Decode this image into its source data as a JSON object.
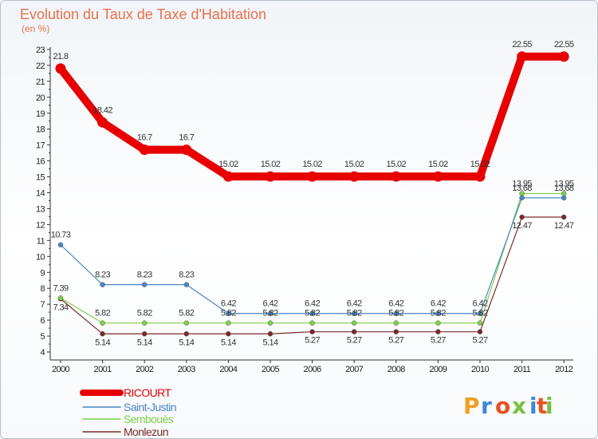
{
  "chart_data": {
    "type": "line",
    "title": "Evolution du Taux de Taxe d'Habitation",
    "subtitle": "(en %)",
    "ylim": [
      4,
      23
    ],
    "yticks": [
      4,
      5,
      6,
      7,
      8,
      9,
      10,
      11,
      12,
      13,
      14,
      15,
      16,
      17,
      18,
      19,
      20,
      21,
      22,
      23
    ],
    "categories": [
      "2000",
      "2001",
      "2002",
      "2003",
      "2004",
      "2005",
      "2006",
      "2007",
      "2008",
      "2009",
      "2010",
      "2011",
      "2012"
    ],
    "series": [
      {
        "name": "RICOURT",
        "color": "#e80000",
        "values": [
          21.8,
          18.42,
          16.7,
          16.7,
          15.02,
          15.02,
          15.02,
          15.02,
          15.02,
          15.02,
          15.02,
          22.55,
          22.55
        ],
        "labels": [
          "21.8",
          "18.42",
          "16.7",
          "16.7",
          "15.02",
          "15.02",
          "15.02",
          "15.02",
          "15.02",
          "15.02",
          "15.02",
          "22.55",
          "22.55"
        ]
      },
      {
        "name": "Saint-Justin",
        "color": "#4a86c6",
        "values": [
          10.73,
          8.23,
          8.23,
          8.23,
          6.42,
          6.42,
          6.42,
          6.42,
          6.42,
          6.42,
          6.42,
          13.68,
          13.68
        ],
        "labels": [
          "10.73",
          "8.23",
          "8.23",
          "8.23",
          "6.42",
          "6.42",
          "6.42",
          "6.42",
          "6.42",
          "6.42",
          "6.42",
          "13.68",
          "13.68"
        ]
      },
      {
        "name": "Sembouès",
        "color": "#7ed04a",
        "values": [
          7.39,
          5.82,
          5.82,
          5.82,
          5.82,
          5.82,
          5.82,
          5.82,
          5.82,
          5.82,
          5.82,
          13.95,
          13.95
        ],
        "labels": [
          "7.39",
          "5.82",
          "5.82",
          "5.82",
          "5.82",
          "5.82",
          "5.82",
          "5.82",
          "5.82",
          "5.82",
          "5.82",
          "13.95",
          "13.95"
        ]
      },
      {
        "name": "Monlezun",
        "color": "#7a2a2a",
        "values": [
          7.34,
          5.14,
          5.14,
          5.14,
          5.14,
          5.14,
          5.27,
          5.27,
          5.27,
          5.27,
          5.27,
          12.47,
          12.47
        ],
        "labels": [
          "7.34",
          "5.14",
          "5.14",
          "5.14",
          "5.14",
          "5.14",
          "5.27",
          "5.27",
          "5.27",
          "5.27",
          "5.27",
          "12.47",
          "12.47"
        ]
      }
    ],
    "legend_position": "bottom-left",
    "grid": false
  },
  "logo": {
    "letters": [
      "P",
      "r",
      "o",
      "x",
      "i",
      "t",
      "i"
    ],
    "colors": [
      "#f0a020",
      "#3a88d8",
      "#e85020",
      "#78c040",
      "#3a88d8",
      "#e85020",
      "#78c040"
    ]
  }
}
